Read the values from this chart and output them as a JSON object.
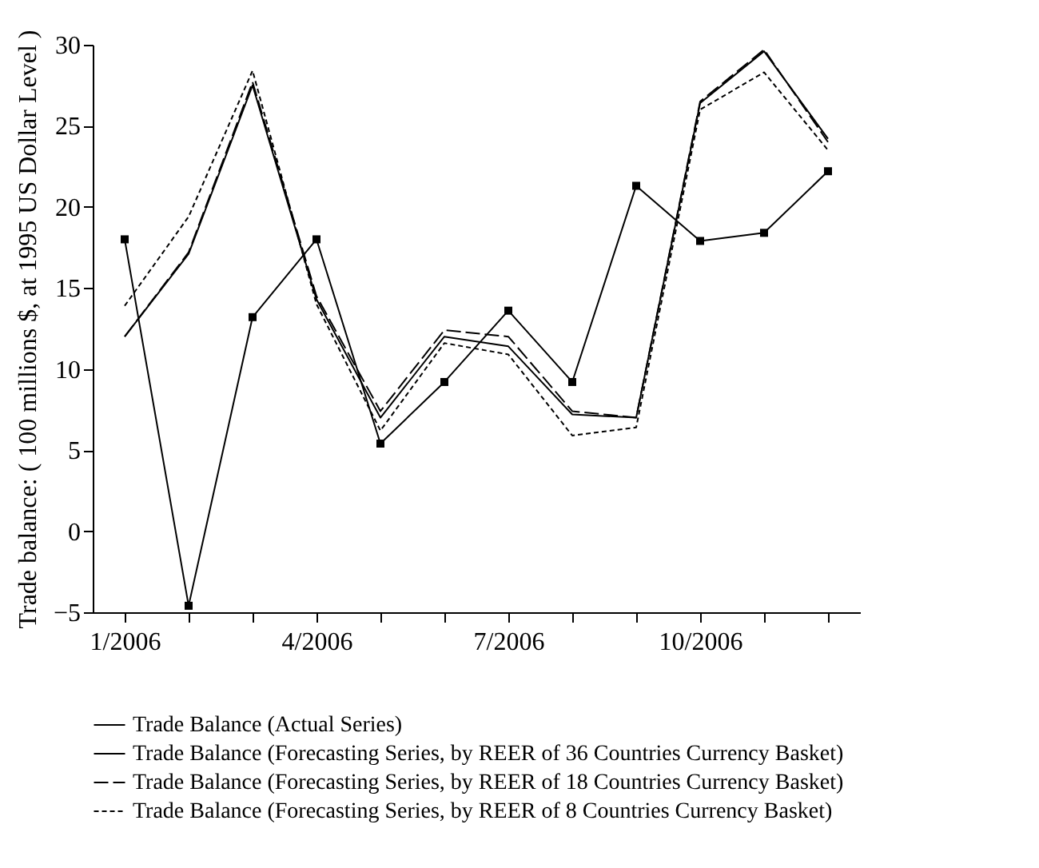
{
  "chart_data": {
    "type": "line",
    "ylabel": "Trade balance: ( 100 millions $, at 1995 US Dollar Level )",
    "categories": [
      "1/2006",
      null,
      null,
      "4/2006",
      null,
      null,
      "7/2006",
      null,
      null,
      "10/2006",
      null,
      null
    ],
    "series": [
      {
        "name": "Trade Balance (Actual Series)",
        "color": "#000000",
        "marker": "square",
        "line_style": "solid",
        "values": [
          18,
          -4.6,
          13.2,
          18,
          5.4,
          9.2,
          13.6,
          9.2,
          21.3,
          17.9,
          18.4,
          22.2
        ]
      },
      {
        "name": "Trade Balance (Forecasting Series, by REER of 36 Countries Currency Basket)",
        "color": "#000000",
        "line_style": "solid",
        "values": [
          12,
          17.1,
          27.5,
          14.3,
          7.0,
          12.0,
          11.4,
          7.2,
          7.0,
          26.4,
          29.6,
          24.2
        ]
      },
      {
        "name": "Trade Balance (Forecasting Series, by REER of 18 Countries Currency Basket)",
        "color": "#000000",
        "line_style": "dashed",
        "values": [
          12,
          17.2,
          27.7,
          14.5,
          7.4,
          12.4,
          12.0,
          7.4,
          7.0,
          26.5,
          29.7,
          24.0
        ]
      },
      {
        "name": "Trade Balance (Forecasting Series, by REER of 8 Countries Currency Basket)",
        "color": "#000000",
        "line_style": "dotted",
        "values": [
          13.9,
          19.4,
          28.4,
          14.0,
          6.2,
          11.6,
          10.9,
          5.9,
          6.4,
          26.0,
          28.3,
          23.5
        ]
      }
    ],
    "ylim": [
      -5,
      30
    ],
    "yticks": [
      -5,
      0,
      5,
      10,
      15,
      20,
      25,
      30
    ],
    "grid": false,
    "legend": "bottom"
  }
}
